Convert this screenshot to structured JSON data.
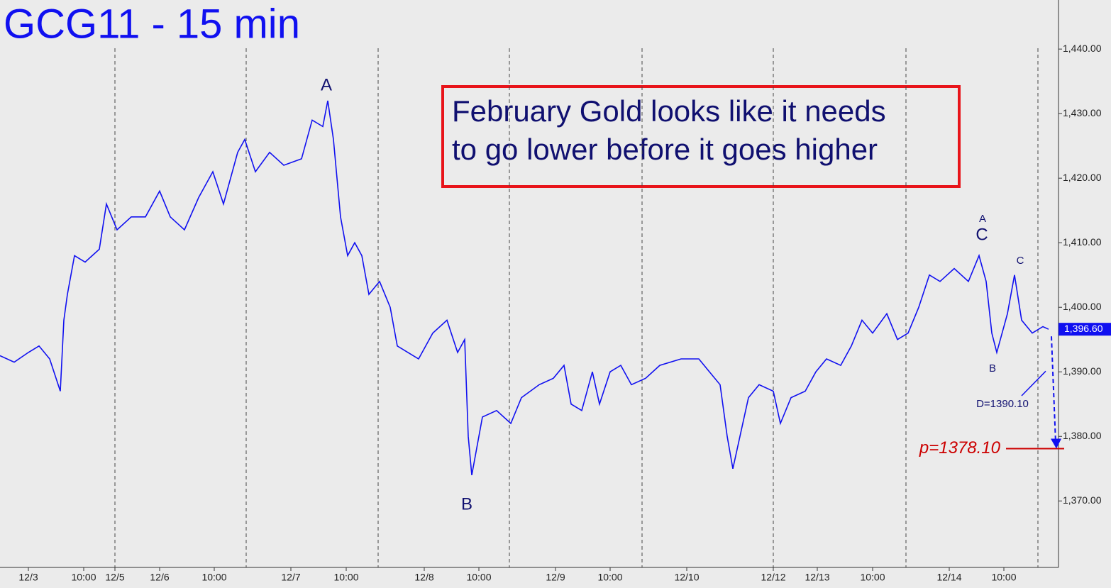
{
  "chart_data": {
    "type": "line",
    "title": "GCG11 - 15 min",
    "annotation_box": [
      "February Gold looks like it needs",
      "to go lower before it goes higher"
    ],
    "xlim": [
      0,
      149.2
    ],
    "ylim": [
      1359.7,
      1447.6
    ],
    "yticks": [
      {
        "value": 1370,
        "label": "1,370.00"
      },
      {
        "value": 1380,
        "label": "1,380.00"
      },
      {
        "value": 1390,
        "label": "1,390.00"
      },
      {
        "value": 1400,
        "label": "1,400.00"
      },
      {
        "value": 1410,
        "label": "1,410.00"
      },
      {
        "value": 1420,
        "label": "1,420.00"
      },
      {
        "value": 1430,
        "label": "1,430.00"
      },
      {
        "value": 1440,
        "label": "1,440.00"
      }
    ],
    "xticks": [
      {
        "value": 4.0,
        "label": "12/3"
      },
      {
        "value": 11.8,
        "label": "10:00"
      },
      {
        "value": 16.2,
        "label": "12/5"
      },
      {
        "value": 22.5,
        "label": "12/6"
      },
      {
        "value": 30.2,
        "label": "10:00"
      },
      {
        "value": 41.0,
        "label": "12/7"
      },
      {
        "value": 48.8,
        "label": "10:00"
      },
      {
        "value": 59.8,
        "label": "12/8"
      },
      {
        "value": 67.5,
        "label": "10:00"
      },
      {
        "value": 78.3,
        "label": "12/9"
      },
      {
        "value": 86.0,
        "label": "10:00"
      },
      {
        "value": 96.8,
        "label": "12/10"
      },
      {
        "value": 109.0,
        "label": "12/12"
      },
      {
        "value": 115.2,
        "label": "12/13"
      },
      {
        "value": 123.0,
        "label": "10:00"
      },
      {
        "value": 133.8,
        "label": "12/14"
      },
      {
        "value": 141.5,
        "label": "10:00"
      }
    ],
    "session_lines": [
      16.2,
      34.7,
      53.3,
      71.8,
      90.5,
      109.0,
      127.7,
      146.3
    ],
    "color": "#1010f0",
    "x": [
      0,
      2,
      4,
      5.5,
      7,
      8.5,
      9,
      9.5,
      10.5,
      12,
      14,
      15,
      16.5,
      18.5,
      20.5,
      22.5,
      24,
      26,
      28,
      30,
      31.5,
      33.5,
      34.5,
      36,
      38,
      40,
      42.5,
      44,
      45.5,
      46.2,
      47,
      48,
      49,
      50,
      51,
      52,
      53.5,
      55,
      56,
      57.5,
      59,
      61,
      63,
      64.5,
      65.5,
      66,
      66.5,
      68,
      70,
      72,
      73.5,
      76,
      78,
      79.5,
      80.5,
      82,
      83.5,
      84.5,
      86,
      87.5,
      89,
      91,
      93,
      96,
      98.5,
      100,
      101.5,
      102.5,
      103.3,
      104.5,
      105.5,
      107,
      109,
      110,
      111.5,
      113.5,
      115,
      116.5,
      118.5,
      120,
      121.5,
      123,
      125,
      126.5,
      128,
      129.5,
      131,
      132.5,
      134.5,
      136.5,
      138,
      139,
      139.8,
      140.5,
      142,
      143,
      144,
      145.5,
      147,
      147.8
    ],
    "values": [
      1392.5,
      1391.5,
      1393,
      1394,
      1392,
      1387,
      1398,
      1402,
      1408,
      1407,
      1409,
      1416,
      1412,
      1414,
      1414,
      1418,
      1414,
      1412,
      1417,
      1421,
      1416,
      1424,
      1426,
      1421,
      1424,
      1422,
      1423,
      1429,
      1428,
      1432,
      1426,
      1414,
      1408,
      1410,
      1408,
      1402,
      1404,
      1400,
      1394,
      1393,
      1392,
      1396,
      1398,
      1393,
      1395,
      1380,
      1374,
      1383,
      1384,
      1382,
      1386,
      1388,
      1389,
      1391,
      1385,
      1384,
      1390,
      1385,
      1390,
      1391,
      1388,
      1389,
      1391,
      1392,
      1392,
      1390,
      1388,
      1380,
      1375,
      1381,
      1386,
      1388,
      1387,
      1382,
      1386,
      1387,
      1390,
      1392,
      1391,
      1394,
      1398,
      1396,
      1399,
      1395,
      1396,
      1400,
      1405,
      1404,
      1406,
      1404,
      1408,
      1404,
      1396,
      1393,
      1399,
      1405,
      1398,
      1396,
      1397,
      1396.6
    ],
    "last_price": {
      "value": 1396.6,
      "label": "1,396.60"
    },
    "target": {
      "value": 1378.1,
      "label": "p=1378.10"
    },
    "d_level": {
      "value": 1390.1,
      "label": "D=1390.10"
    },
    "wave_labels": [
      "A",
      "B",
      "A",
      "C",
      "B",
      "C"
    ]
  }
}
